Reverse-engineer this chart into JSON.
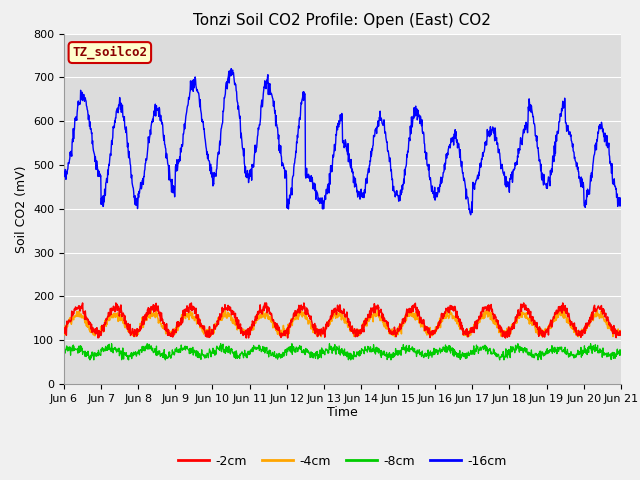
{
  "title": "Tonzi Soil CO2 Profile: Open (East) CO2",
  "ylabel": "Soil CO2 (mV)",
  "xlabel": "Time",
  "ylim": [
    0,
    800
  ],
  "yticks": [
    0,
    100,
    200,
    300,
    400,
    500,
    600,
    700,
    800
  ],
  "n_days": 15,
  "xtick_labels": [
    "Jun 6",
    "Jun 7",
    "Jun 8",
    "Jun 9",
    "Jun 10",
    "Jun 11",
    "Jun 12",
    "Jun 13",
    "Jun 14",
    "Jun 15",
    "Jun 16",
    "Jun 17",
    "Jun 18",
    "Jun 19",
    "Jun 20",
    "Jun 21"
  ],
  "line_colors": {
    "m2cm": "#FF0000",
    "m4cm": "#FFA500",
    "m8cm": "#00CC00",
    "m16cm": "#0000FF"
  },
  "legend_labels": [
    "-2cm",
    "-4cm",
    "-8cm",
    "-16cm"
  ],
  "legend_colors": [
    "#FF0000",
    "#FFA500",
    "#00CC00",
    "#0000FF"
  ],
  "label_text": "TZ_soilco2",
  "label_bg": "#FFFFCC",
  "label_border": "#CC0000",
  "bg_color": "#DCDCDC",
  "title_fontsize": 11,
  "axis_fontsize": 9,
  "tick_fontsize": 8
}
